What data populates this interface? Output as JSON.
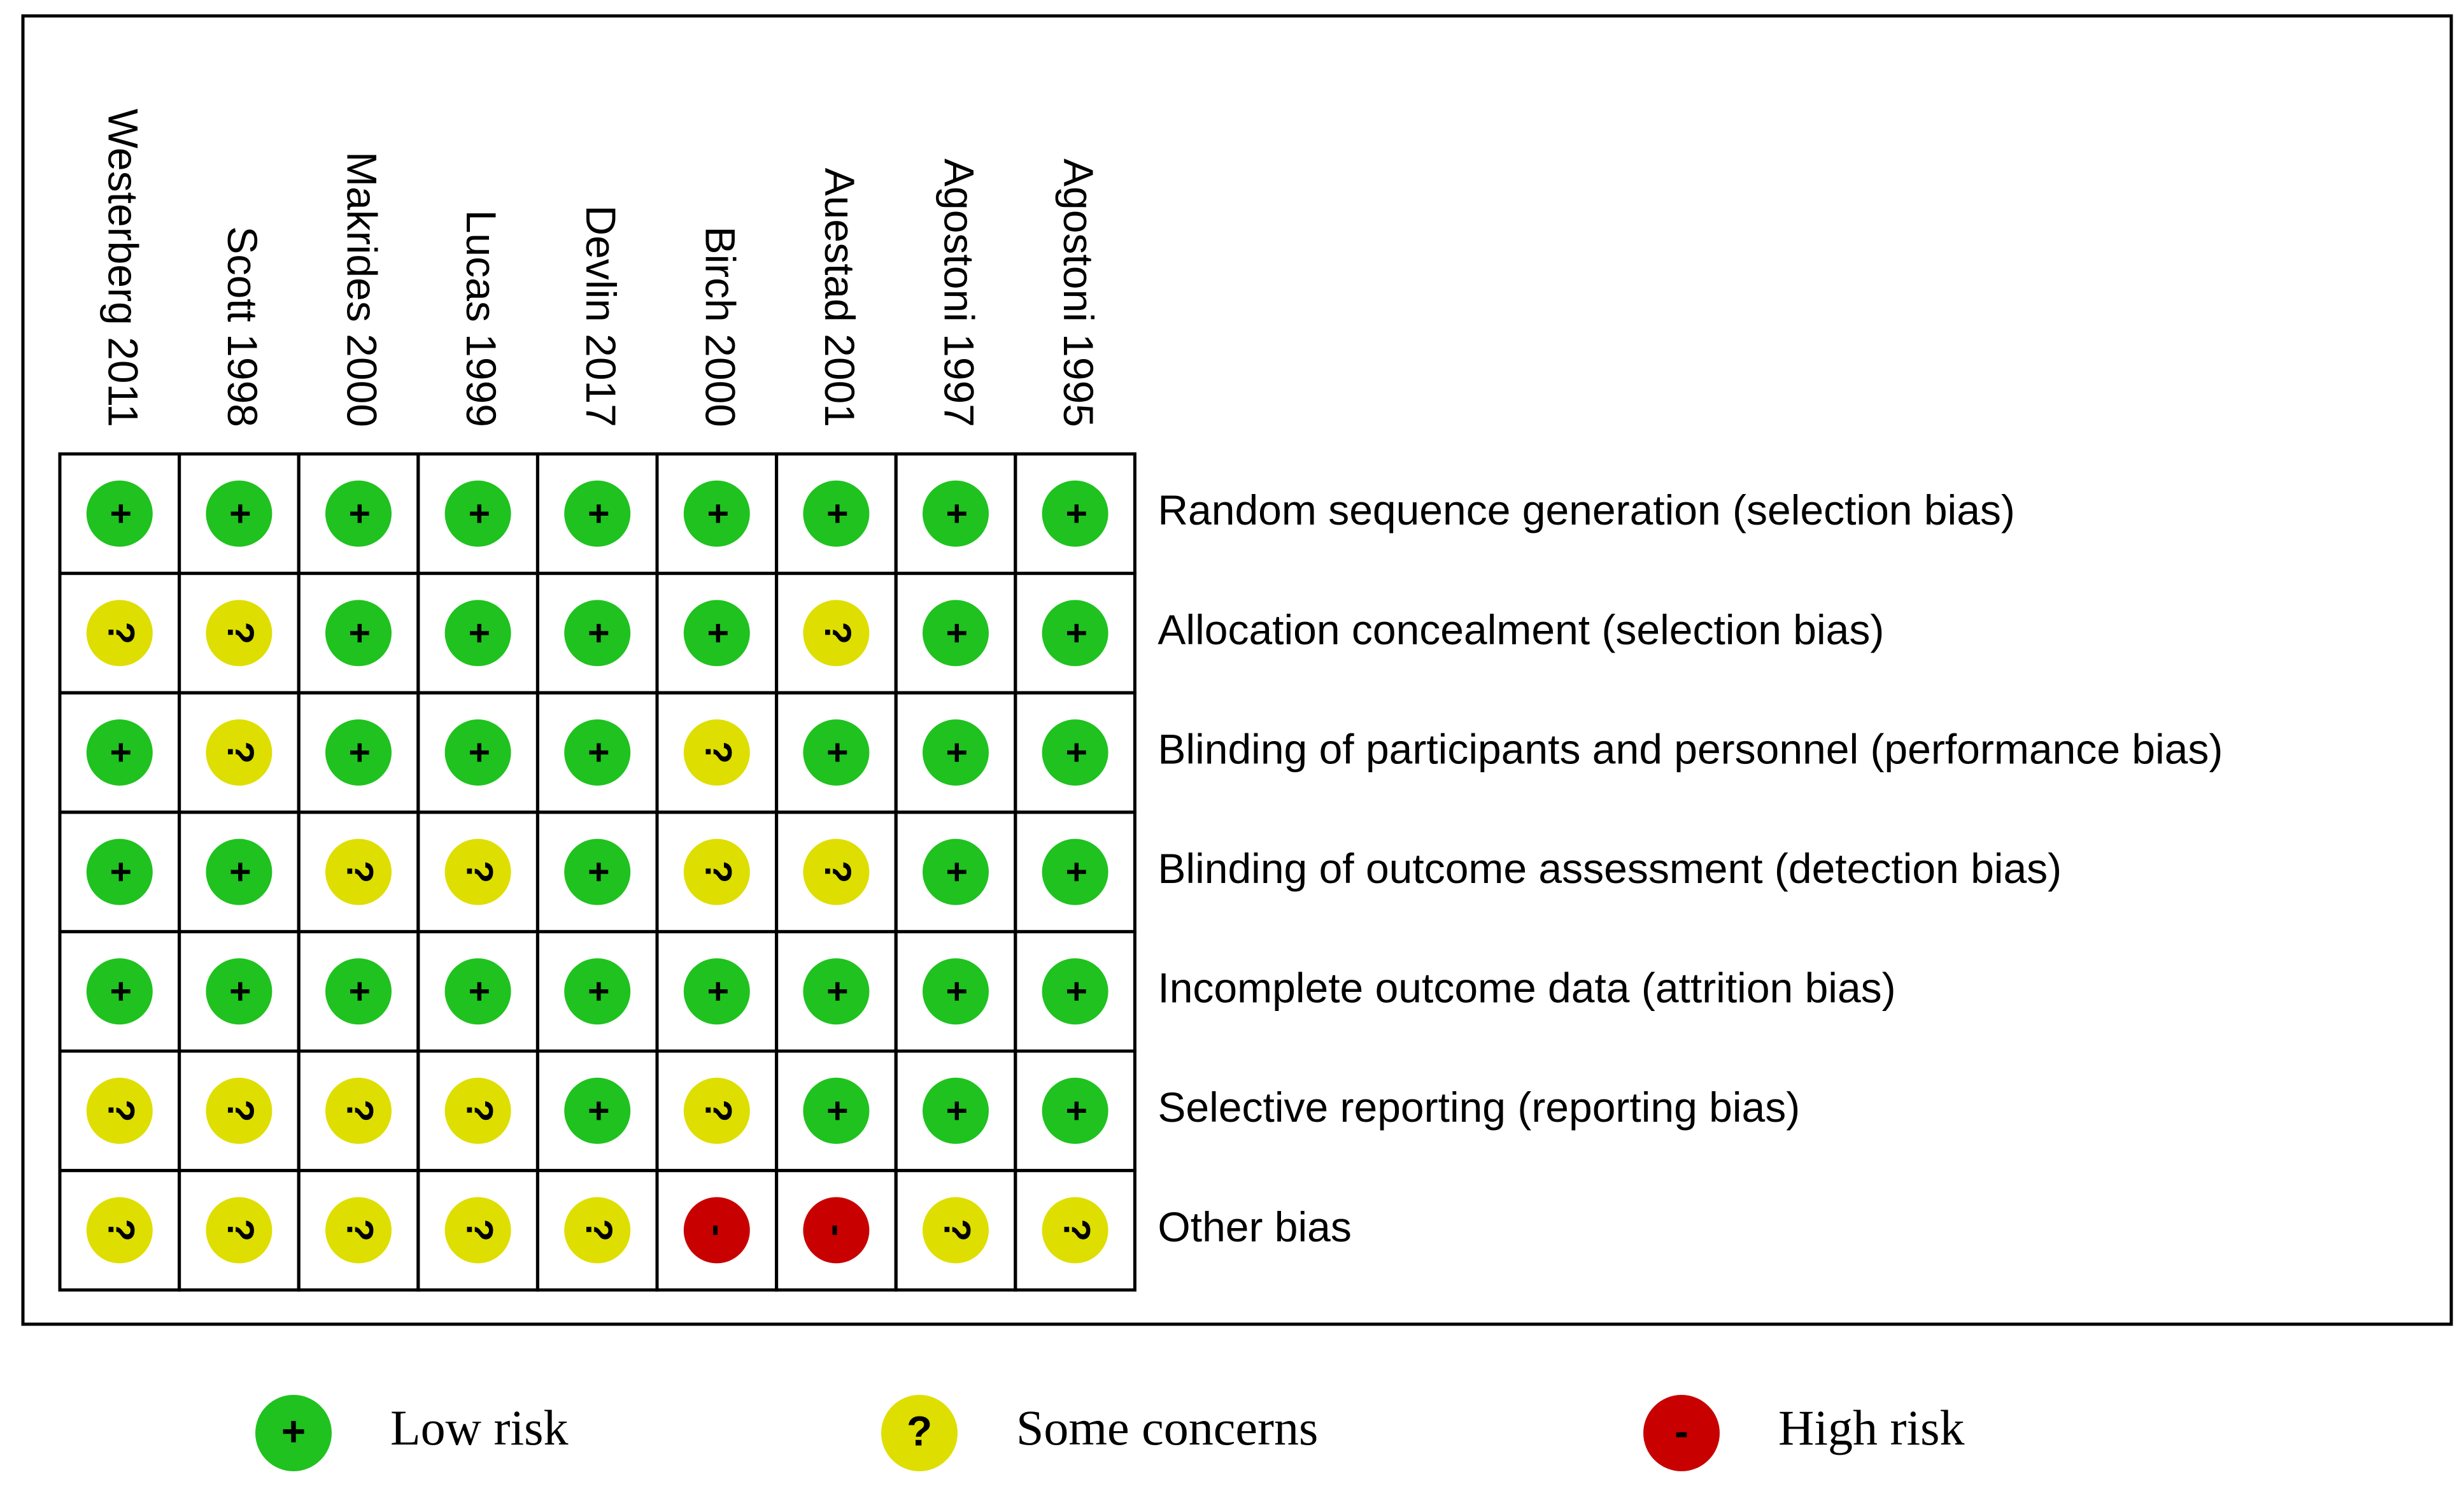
{
  "studies": [
    "Westerberg 2011",
    "Scott 1998",
    "Makrides 2000",
    "Lucas 1999",
    "Devlin 2017",
    "Birch 2000",
    "Auestad 2001",
    "Agostoni 1997",
    "Agostoni 1995"
  ],
  "domains": [
    "Random sequence generation (selection bias)",
    "Allocation concealment (selection bias)",
    "Blinding of participants and personnel (performance bias)",
    "Blinding of outcome assessment (detection bias)",
    "Incomplete outcome data (attrition bias)",
    "Selective reporting (reporting bias)",
    "Other bias"
  ],
  "judgments": [
    [
      "+",
      "+",
      "+",
      "+",
      "+",
      "+",
      "+",
      "+",
      "+"
    ],
    [
      "?",
      "?",
      "+",
      "+",
      "+",
      "+",
      "?",
      "+",
      "+"
    ],
    [
      "+",
      "?",
      "+",
      "+",
      "+",
      "?",
      "+",
      "+",
      "+"
    ],
    [
      "+",
      "+",
      "?",
      "?",
      "+",
      "?",
      "?",
      "+",
      "+"
    ],
    [
      "+",
      "+",
      "+",
      "+",
      "+",
      "+",
      "+",
      "+",
      "+"
    ],
    [
      "?",
      "?",
      "?",
      "?",
      "+",
      "?",
      "+",
      "+",
      "+"
    ],
    [
      "?",
      "?",
      "?",
      "?",
      "?",
      "-",
      "-",
      "?",
      "?"
    ]
  ],
  "legend": [
    {
      "symbol": "+",
      "label": "Low risk",
      "color": "#1fc21f"
    },
    {
      "symbol": "?",
      "label": "Some concerns",
      "color": "#dede00"
    },
    {
      "symbol": "-",
      "label": "High risk",
      "color": "#c80000"
    }
  ]
}
